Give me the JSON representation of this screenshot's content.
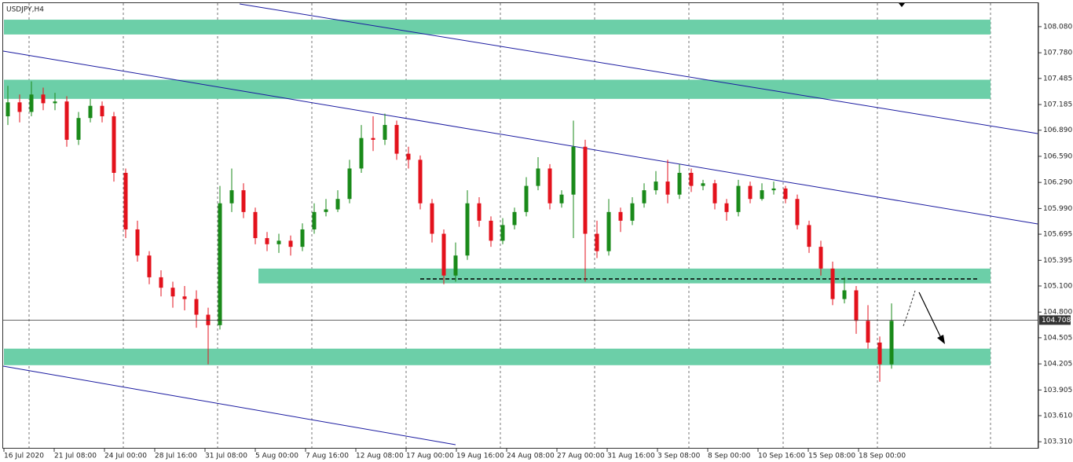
{
  "chart_data": {
    "type": "candlestick",
    "title": "USDJPY,H4",
    "x_labels": [
      "16 Jul 2020",
      "21 Jul 08:00",
      "24 Jul 00:00",
      "28 Jul 16:00",
      "31 Jul 08:00",
      "5 Aug 00:00",
      "7 Aug 16:00",
      "12 Aug 08:00",
      "17 Aug 00:00",
      "19 Aug 16:00",
      "24 Aug 08:00",
      "27 Aug 00:00",
      "31 Aug 16:00",
      "3 Sep 08:00",
      "8 Sep 00:00",
      "10 Sep 16:00",
      "15 Sep 08:00",
      "18 Sep 00:00"
    ],
    "open": [
      107.05,
      107.21,
      107.1,
      107.3,
      107.2,
      107.22,
      106.78,
      107.03,
      107.17,
      107.05,
      106.4,
      105.75,
      105.45,
      105.2,
      105.08,
      104.98,
      104.95,
      104.77,
      104.65,
      106.05,
      106.2,
      105.95,
      105.65,
      105.58,
      105.62,
      105.55,
      105.75,
      105.95,
      105.98,
      106.1,
      106.45,
      106.8,
      106.78,
      106.95,
      106.62,
      106.55,
      106.05,
      105.7,
      105.22,
      105.45,
      106.05,
      105.85,
      105.62,
      105.8,
      105.95,
      106.25,
      106.45,
      106.05,
      106.15,
      106.7,
      105.7,
      105.5,
      105.95,
      105.85,
      106.05,
      106.2,
      106.3,
      106.15,
      106.4,
      106.25,
      106.28,
      106.05,
      105.95,
      106.25,
      106.1,
      106.2,
      106.22,
      106.1,
      105.8,
      105.55,
      105.3,
      104.95,
      105.05,
      104.7,
      104.45,
      104.2
    ],
    "high": [
      107.4,
      107.3,
      107.45,
      107.38,
      107.32,
      107.28,
      107.1,
      107.25,
      107.22,
      107.1,
      106.45,
      105.85,
      105.5,
      105.28,
      105.15,
      105.1,
      105.05,
      104.85,
      106.25,
      106.45,
      106.28,
      106.0,
      105.72,
      105.7,
      105.68,
      105.82,
      106.05,
      106.1,
      106.2,
      106.55,
      106.95,
      107.05,
      107.08,
      107.0,
      106.7,
      106.6,
      106.1,
      105.75,
      105.6,
      106.2,
      106.12,
      105.9,
      105.88,
      106.0,
      106.35,
      106.58,
      106.5,
      106.2,
      107.0,
      106.78,
      105.85,
      106.1,
      106.0,
      106.12,
      106.28,
      106.42,
      106.55,
      106.5,
      106.45,
      106.32,
      106.32,
      106.1,
      106.32,
      106.3,
      106.28,
      106.3,
      106.25,
      106.15,
      105.85,
      105.62,
      105.38,
      105.2,
      105.1,
      104.88,
      104.52,
      104.9
    ],
    "low": [
      106.95,
      106.98,
      107.05,
      107.12,
      107.12,
      106.7,
      106.72,
      106.98,
      106.98,
      106.3,
      105.65,
      105.38,
      105.12,
      104.98,
      104.85,
      104.82,
      104.62,
      104.2,
      104.6,
      105.95,
      105.88,
      105.58,
      105.5,
      105.48,
      105.45,
      105.5,
      105.7,
      105.9,
      105.95,
      106.05,
      106.4,
      106.65,
      106.72,
      106.55,
      106.45,
      105.98,
      105.6,
      105.12,
      105.15,
      105.4,
      105.78,
      105.55,
      105.58,
      105.75,
      105.9,
      106.2,
      105.98,
      106.0,
      105.65,
      105.15,
      105.42,
      105.45,
      105.72,
      105.8,
      106.0,
      106.15,
      106.05,
      106.1,
      106.18,
      106.2,
      105.98,
      105.85,
      105.9,
      106.05,
      106.08,
      106.15,
      106.05,
      105.75,
      105.48,
      105.22,
      104.88,
      104.9,
      104.55,
      104.38,
      104.0,
      104.15
    ],
    "close": [
      107.21,
      107.1,
      107.3,
      107.2,
      107.22,
      106.78,
      107.03,
      107.17,
      107.05,
      106.4,
      105.75,
      105.45,
      105.2,
      105.08,
      104.98,
      104.95,
      104.77,
      104.65,
      106.05,
      106.2,
      105.95,
      105.65,
      105.58,
      105.62,
      105.55,
      105.75,
      105.95,
      105.98,
      106.1,
      106.45,
      106.8,
      106.78,
      106.95,
      106.62,
      106.55,
      106.05,
      105.7,
      105.22,
      105.45,
      106.05,
      105.85,
      105.62,
      105.8,
      105.95,
      106.25,
      106.45,
      106.05,
      106.15,
      106.7,
      105.7,
      105.5,
      105.95,
      105.85,
      106.05,
      106.2,
      106.3,
      106.15,
      106.4,
      106.25,
      106.28,
      106.05,
      105.95,
      106.25,
      106.1,
      106.2,
      106.22,
      106.1,
      105.8,
      105.55,
      105.3,
      104.95,
      105.05,
      104.7,
      104.45,
      104.2,
      104.7
    ],
    "up_color": "#1a8a1a",
    "down_color": "#e3121c",
    "zone_color": "#6ccfa8",
    "zones": [
      {
        "from": 107.99,
        "to": 108.16
      },
      {
        "from": 107.25,
        "to": 107.47
      },
      {
        "from": 105.13,
        "to": 105.3
      },
      {
        "from": 104.19,
        "to": 104.38
      }
    ],
    "ylim": [
      103.24,
      108.35
    ],
    "yticks": [
      {
        "value": 103.31,
        "label": "103.310"
      },
      {
        "value": 103.61,
        "label": "103.610"
      },
      {
        "value": 103.905,
        "label": "103.905"
      },
      {
        "value": 104.205,
        "label": "104.205"
      },
      {
        "value": 104.505,
        "label": "104.505"
      },
      {
        "value": 104.8,
        "label": "104.800"
      },
      {
        "value": 105.1,
        "label": "105.100"
      },
      {
        "value": 105.395,
        "label": "105.395"
      },
      {
        "value": 105.695,
        "label": "105.695"
      },
      {
        "value": 105.99,
        "label": "105.990"
      },
      {
        "value": 106.29,
        "label": "106.290"
      },
      {
        "value": 106.59,
        "label": "106.590"
      },
      {
        "value": 106.89,
        "label": "106.890"
      },
      {
        "value": 107.185,
        "label": "107.185"
      },
      {
        "value": 107.485,
        "label": "107.485"
      },
      {
        "value": 107.78,
        "label": "107.780"
      },
      {
        "value": 108.08,
        "label": "108.080"
      }
    ],
    "last_price": 104.708
  }
}
